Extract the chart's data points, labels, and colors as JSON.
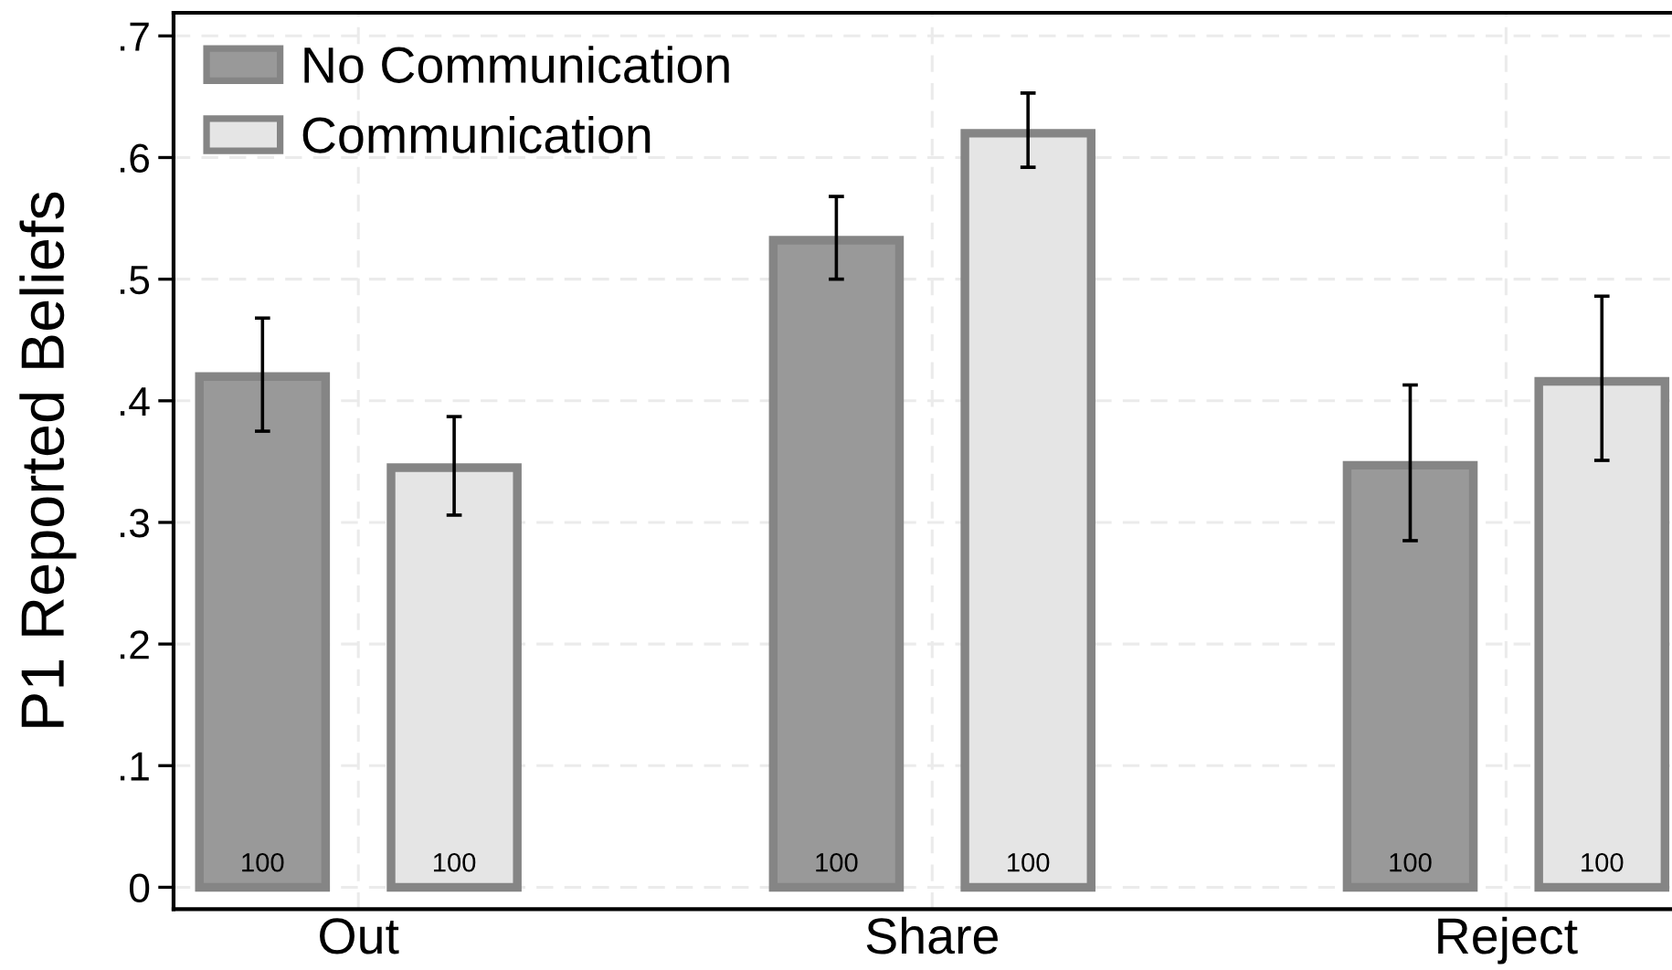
{
  "chart_data": {
    "type": "bar",
    "ylabel": "P1 Reported Beliefs",
    "categories": [
      "Out",
      "Share",
      "Reject"
    ],
    "series": [
      {
        "name": "No Communication",
        "color": "#999999",
        "values": [
          0.42,
          0.532,
          0.347
        ],
        "errors": [
          [
            0.375,
            0.468
          ],
          [
            0.5,
            0.568
          ],
          [
            0.285,
            0.413
          ]
        ]
      },
      {
        "name": "Communication",
        "color": "#e5e5e5",
        "values": [
          0.345,
          0.62,
          0.416
        ],
        "errors": [
          [
            0.306,
            0.387
          ],
          [
            0.592,
            0.653
          ],
          [
            0.351,
            0.486
          ]
        ]
      }
    ],
    "annotations": [
      "100",
      "100",
      "100",
      "100",
      "100",
      "100"
    ],
    "ylim": [
      -0.018,
      0.719
    ],
    "yticks": [
      0,
      {
        "value": 0.1,
        "label": ".1"
      },
      {
        "value": 0.2,
        "label": ".2"
      },
      {
        "value": 0.3,
        "label": ".3"
      },
      {
        "value": 0.4,
        "label": ".4"
      },
      {
        "value": 0.5,
        "label": ".5"
      },
      {
        "value": 0.6,
        "label": ".6"
      },
      {
        "value": 0.7,
        "label": ".7"
      }
    ],
    "grid": true,
    "legend": "top left"
  }
}
